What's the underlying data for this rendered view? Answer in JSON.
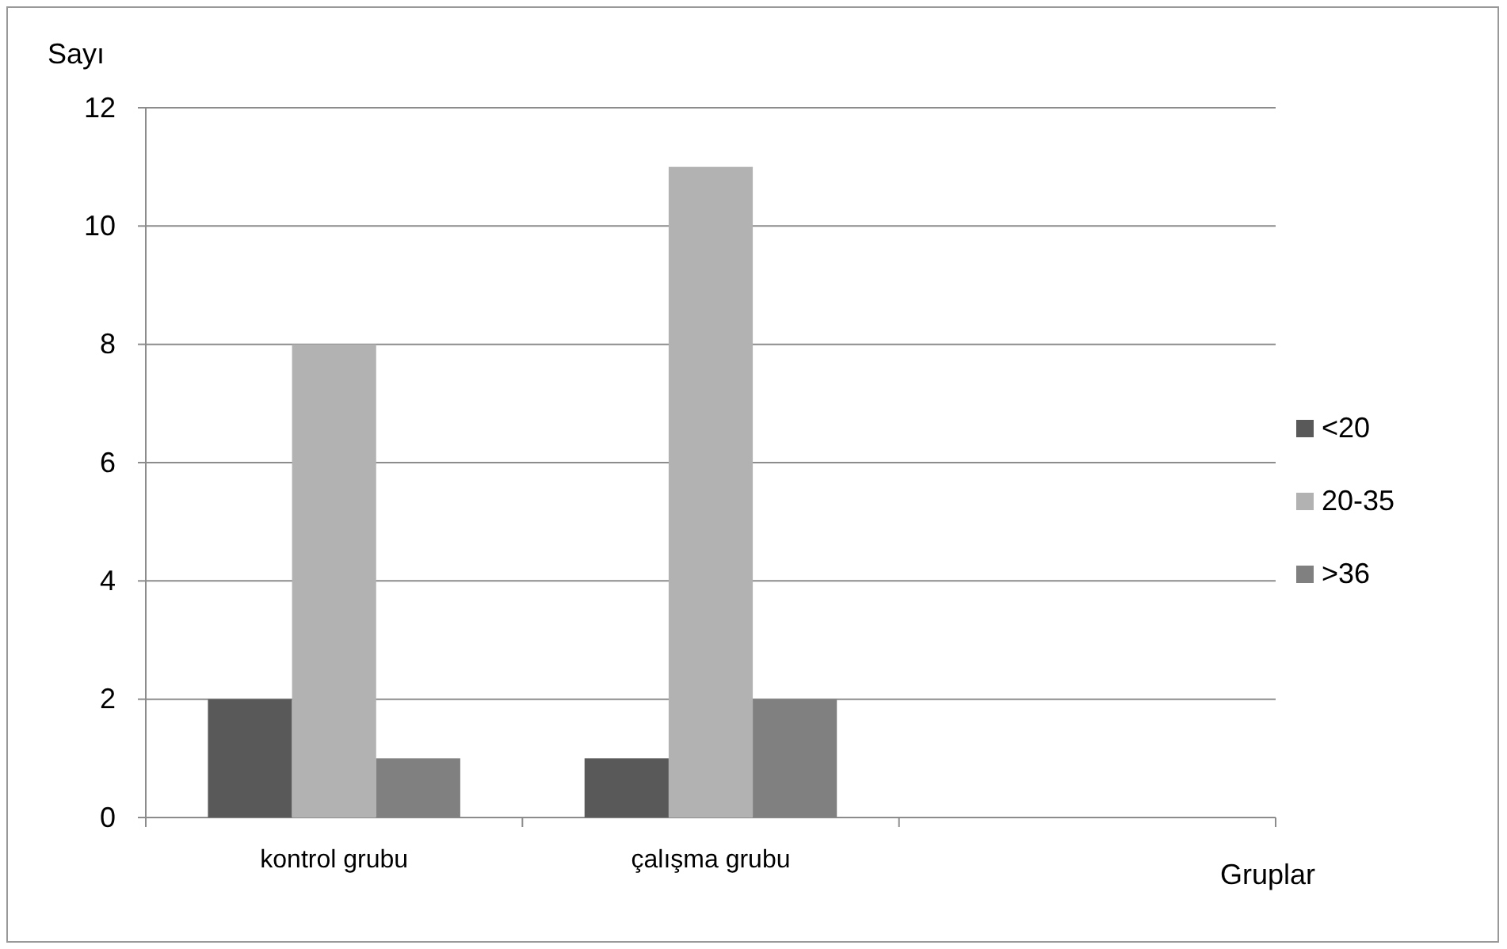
{
  "chart_data": {
    "type": "bar",
    "ylabel": "Sayı",
    "xlabel": "Gruplar",
    "categories": [
      "kontrol grubu",
      "çalışma grubu",
      null
    ],
    "series": [
      {
        "name": "<20",
        "color": "#595959",
        "values": [
          2,
          1,
          null
        ]
      },
      {
        "name": "20-35",
        "color": "#b2b2b2",
        "values": [
          8,
          11,
          null
        ]
      },
      {
        "name": ">36",
        "color": "#808080",
        "values": [
          1,
          2,
          null
        ]
      }
    ],
    "ylim": [
      0,
      12
    ],
    "yticks": [
      0,
      2,
      4,
      6,
      8,
      10,
      12
    ],
    "grid": "y",
    "legend": "right"
  }
}
